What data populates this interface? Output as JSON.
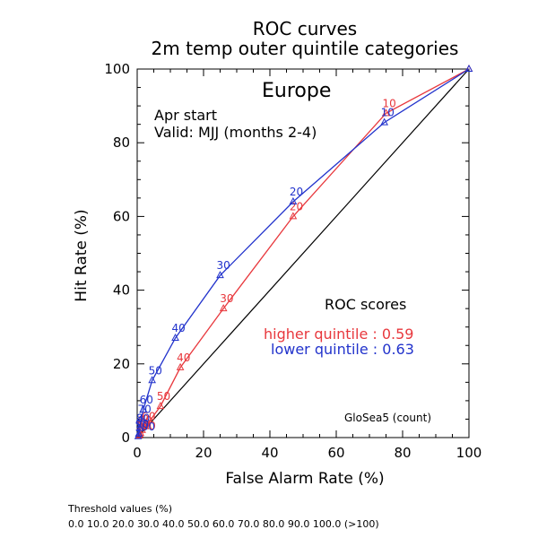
{
  "chart_data": {
    "type": "line",
    "title": "ROC curves",
    "subtitle": "2m temp outer quintile categories",
    "region": "Europe",
    "start_text": "Apr start",
    "valid_text": "Valid: MJJ (months 2-4)",
    "xlabel": "False Alarm Rate (%)",
    "ylabel": "Hit Rate (%)",
    "xlim": [
      0,
      100
    ],
    "ylim": [
      0,
      100
    ],
    "xticks": [
      "0",
      "20",
      "40",
      "60",
      "80",
      "100"
    ],
    "yticks": [
      "0",
      "20",
      "40",
      "60",
      "80",
      "100"
    ],
    "scores_title": "ROC scores",
    "model_label": "GloSea5 (count)",
    "colors": {
      "higher": "#e8383d",
      "lower": "#2233cc",
      "diagonal": "#000000"
    },
    "series": [
      {
        "name": "higher quintile",
        "score_text": "higher quintile : 0.59",
        "points": [
          {
            "x": 0.5,
            "y": 0.5,
            "label": "100"
          },
          {
            "x": 0.8,
            "y": 0.8,
            "label": "90"
          },
          {
            "x": 1.0,
            "y": 1.2,
            "label": "80"
          },
          {
            "x": 1.5,
            "y": 2.0,
            "label": "70"
          },
          {
            "x": 2.5,
            "y": 3.0,
            "label": "60"
          },
          {
            "x": 7.0,
            "y": 8.5,
            "label": "50"
          },
          {
            "x": 13.0,
            "y": 19.0,
            "label": "40"
          },
          {
            "x": 26.0,
            "y": 35.0,
            "label": "30"
          },
          {
            "x": 47.0,
            "y": 60.0,
            "label": "20"
          },
          {
            "x": 75.0,
            "y": 88.0,
            "label": "10"
          },
          {
            "x": 100.0,
            "y": 100.0,
            "label": ""
          }
        ]
      },
      {
        "name": "lower quintile",
        "score_text": "lower quintile : 0.63",
        "points": [
          {
            "x": 0.3,
            "y": 0.3,
            "label": "100"
          },
          {
            "x": 0.5,
            "y": 1.0,
            "label": "90"
          },
          {
            "x": 0.8,
            "y": 2.5,
            "label": "80"
          },
          {
            "x": 1.2,
            "y": 5.0,
            "label": "70"
          },
          {
            "x": 1.8,
            "y": 7.5,
            "label": "60"
          },
          {
            "x": 4.5,
            "y": 15.5,
            "label": "50"
          },
          {
            "x": 11.5,
            "y": 27.0,
            "label": "40"
          },
          {
            "x": 25.0,
            "y": 44.0,
            "label": "30"
          },
          {
            "x": 47.0,
            "y": 64.0,
            "label": "20"
          },
          {
            "x": 74.5,
            "y": 85.5,
            "label": "10"
          },
          {
            "x": 100.0,
            "y": 100.0,
            "label": ""
          }
        ]
      }
    ]
  },
  "footer": {
    "threshold_title": "Threshold values (%)",
    "threshold_values": "0.0 10.0 20.0 30.0 40.0 50.0 60.0 70.0 80.0 90.0 100.0 (>100)"
  }
}
